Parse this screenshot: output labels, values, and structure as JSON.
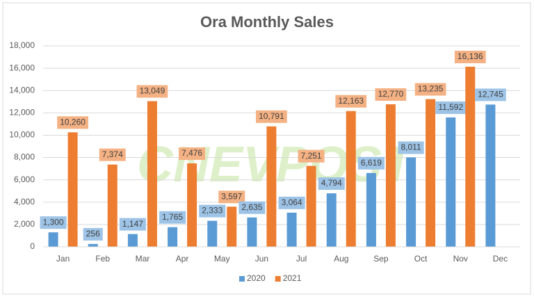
{
  "chart_data": {
    "type": "bar",
    "title": "Ora Monthly Sales",
    "watermark": "CNEVPOST",
    "categories": [
      "Jan",
      "Feb",
      "Mar",
      "Apr",
      "May",
      "Jun",
      "Jul",
      "Aug",
      "Sep",
      "Oct",
      "Nov",
      "Dec"
    ],
    "series": [
      {
        "name": "2020",
        "color": "#5b9bd5",
        "label_color": "#9dc3e6",
        "values": [
          1300,
          256,
          1147,
          1765,
          2333,
          2635,
          3064,
          4794,
          6619,
          8011,
          11592,
          12745
        ],
        "value_labels": [
          "1,300",
          "256",
          "1,147",
          "1,765",
          "2,333",
          "2,635",
          "3,064",
          "4,794",
          "6,619",
          "8,011",
          "11,592",
          "12,745"
        ]
      },
      {
        "name": "2021",
        "color": "#ed7d31",
        "label_color": "#f4b183",
        "values": [
          10260,
          7374,
          13049,
          7476,
          3597,
          10791,
          7251,
          12163,
          12770,
          13235,
          16136,
          null
        ],
        "value_labels": [
          "10,260",
          "7,374",
          "13,049",
          "7,476",
          "3,597",
          "10,791",
          "7,251",
          "12,163",
          "12,770",
          "13,235",
          "16,136",
          null
        ]
      }
    ],
    "ylim": [
      0,
      18000
    ],
    "yticks": [
      0,
      {
        "value": 2000,
        "label": "2,000"
      },
      {
        "value": 4000,
        "label": "4,000"
      },
      {
        "value": 6000,
        "label": "6,000"
      },
      {
        "value": 8000,
        "label": "8,000"
      },
      {
        "value": 10000,
        "label": "10,000"
      },
      {
        "value": 12000,
        "label": "12,000"
      },
      {
        "value": 14000,
        "label": "14,000"
      },
      {
        "value": 16000,
        "label": "16,000"
      },
      {
        "value": 18000,
        "label": "18,000"
      }
    ],
    "grid": true,
    "legend": "bottom"
  }
}
